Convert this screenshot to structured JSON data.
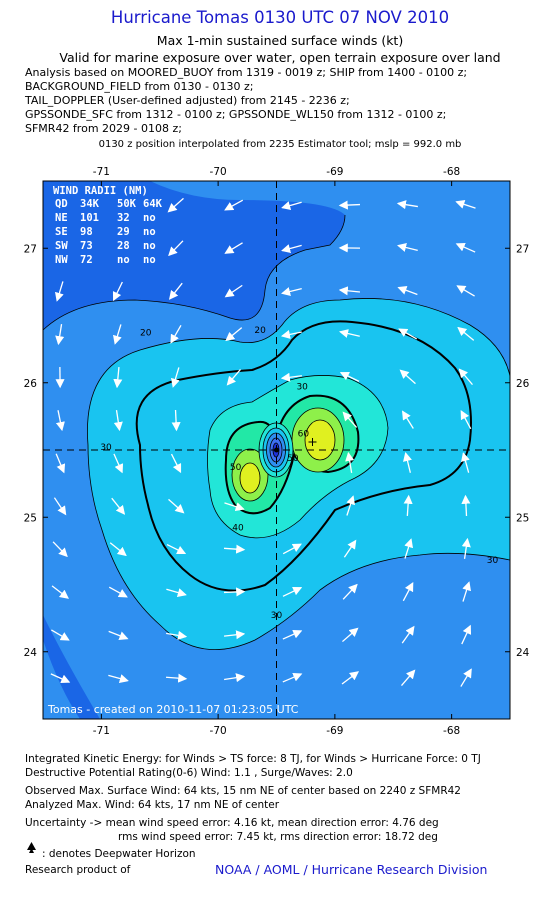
{
  "header": {
    "title": "Hurricane Tomas 0130 UTC 07 NOV 2010",
    "subtitle1": "Max 1-min sustained surface winds (kt)",
    "subtitle2": "Valid for marine exposure over water, open terrain exposure over land"
  },
  "analysis_lines": [
    "Analysis based on MOORED_BUOY from 1319 - 0019 z; SHIP from 1400 - 0100 z;",
    "BACKGROUND_FIELD from 0130 - 0130 z;",
    "TAIL_DOPPLER (User-defined adjusted) from 2145 - 2236 z;",
    "GPSSONDE_SFC from 1312 - 0100 z; GPSSONDE_WL150 from 1312 - 0100 z;",
    "SFMR42 from 2029 - 0108 z;"
  ],
  "position_note": "0130 z position interpolated from 2235 Estimator tool; mslp = 992.0 mb",
  "chart_data": {
    "type": "contour",
    "x_ticks": [
      "-71",
      "-70",
      "-69",
      "-68"
    ],
    "y_ticks": [
      "27",
      "26",
      "25",
      "24"
    ],
    "x_tick_values": [
      -71,
      -70,
      -69,
      -68
    ],
    "y_tick_values": [
      27,
      26,
      25,
      24
    ],
    "xlim": [
      -71.5,
      -67.5
    ],
    "ylim": [
      23.5,
      27.5
    ],
    "center": {
      "lon": -69.5,
      "lat": 25.5
    },
    "contour_labels": [
      {
        "text": "20",
        "lon": -70.62,
        "lat": 26.35
      },
      {
        "text": "20",
        "lon": -69.64,
        "lat": 26.37
      },
      {
        "text": "30",
        "lon": -70.96,
        "lat": 25.5
      },
      {
        "text": "30",
        "lon": -69.28,
        "lat": 25.95
      },
      {
        "text": "30",
        "lon": -67.65,
        "lat": 24.66
      },
      {
        "text": "30",
        "lon": -69.5,
        "lat": 24.25
      },
      {
        "text": "40",
        "lon": -69.83,
        "lat": 24.9
      },
      {
        "text": "50",
        "lon": -69.85,
        "lat": 25.35
      },
      {
        "text": "60",
        "lon": -69.27,
        "lat": 25.6
      },
      {
        "text": "50",
        "lon": -69.36,
        "lat": 25.42
      }
    ],
    "wind_radii": {
      "header": "WIND RADII (NM)",
      "columns": [
        "QD",
        "34K",
        "50K",
        "64K"
      ],
      "rows": [
        [
          "NE",
          "101",
          "32",
          "no"
        ],
        [
          "SE",
          "98",
          "29",
          "no"
        ],
        [
          "SW",
          "73",
          "28",
          "no"
        ],
        [
          "NW",
          "72",
          "no",
          "no"
        ]
      ]
    },
    "credit": "Tomas - created on 2010-11-07 01:23:05 UTC"
  },
  "footer": {
    "ike": "Integrated Kinetic Energy:  for Winds > TS force: 8 TJ,  for Winds > Hurricane Force: 0 TJ",
    "dpr": "Destructive Potential Rating(0-6)   Wind: 1.1 , Surge/Waves: 2.0",
    "observed": "Observed Max. Surface Wind: 64 kts, 15 nm NE of center based on 2240 z SFMR42",
    "analyzed": "Analyzed Max. Wind: 64 kts, 17 nm NE of center",
    "uncertainty1": "Uncertainty -> mean wind speed error: 4.16 kt,   mean direction error: 4.76 deg",
    "uncertainty2": "rms wind speed error: 7.45 kt,   rms direction error: 18.72 deg",
    "deepwater": ": denotes Deepwater Horizon",
    "research": "Research product of",
    "noaa": "NOAA / AOML / Hurricane Research Division"
  },
  "colors": {
    "c10": "#1a66e6",
    "c20": "#2f8ff0",
    "c30": "#19c4f0",
    "c40": "#22e6d8",
    "c50": "#22e8a6",
    "c60": "#8ef04a",
    "c64": "#e0f020",
    "eye_dark": "#1e2fd8",
    "eye_mid": "#3d6ff0",
    "title": "#1a1acc"
  }
}
